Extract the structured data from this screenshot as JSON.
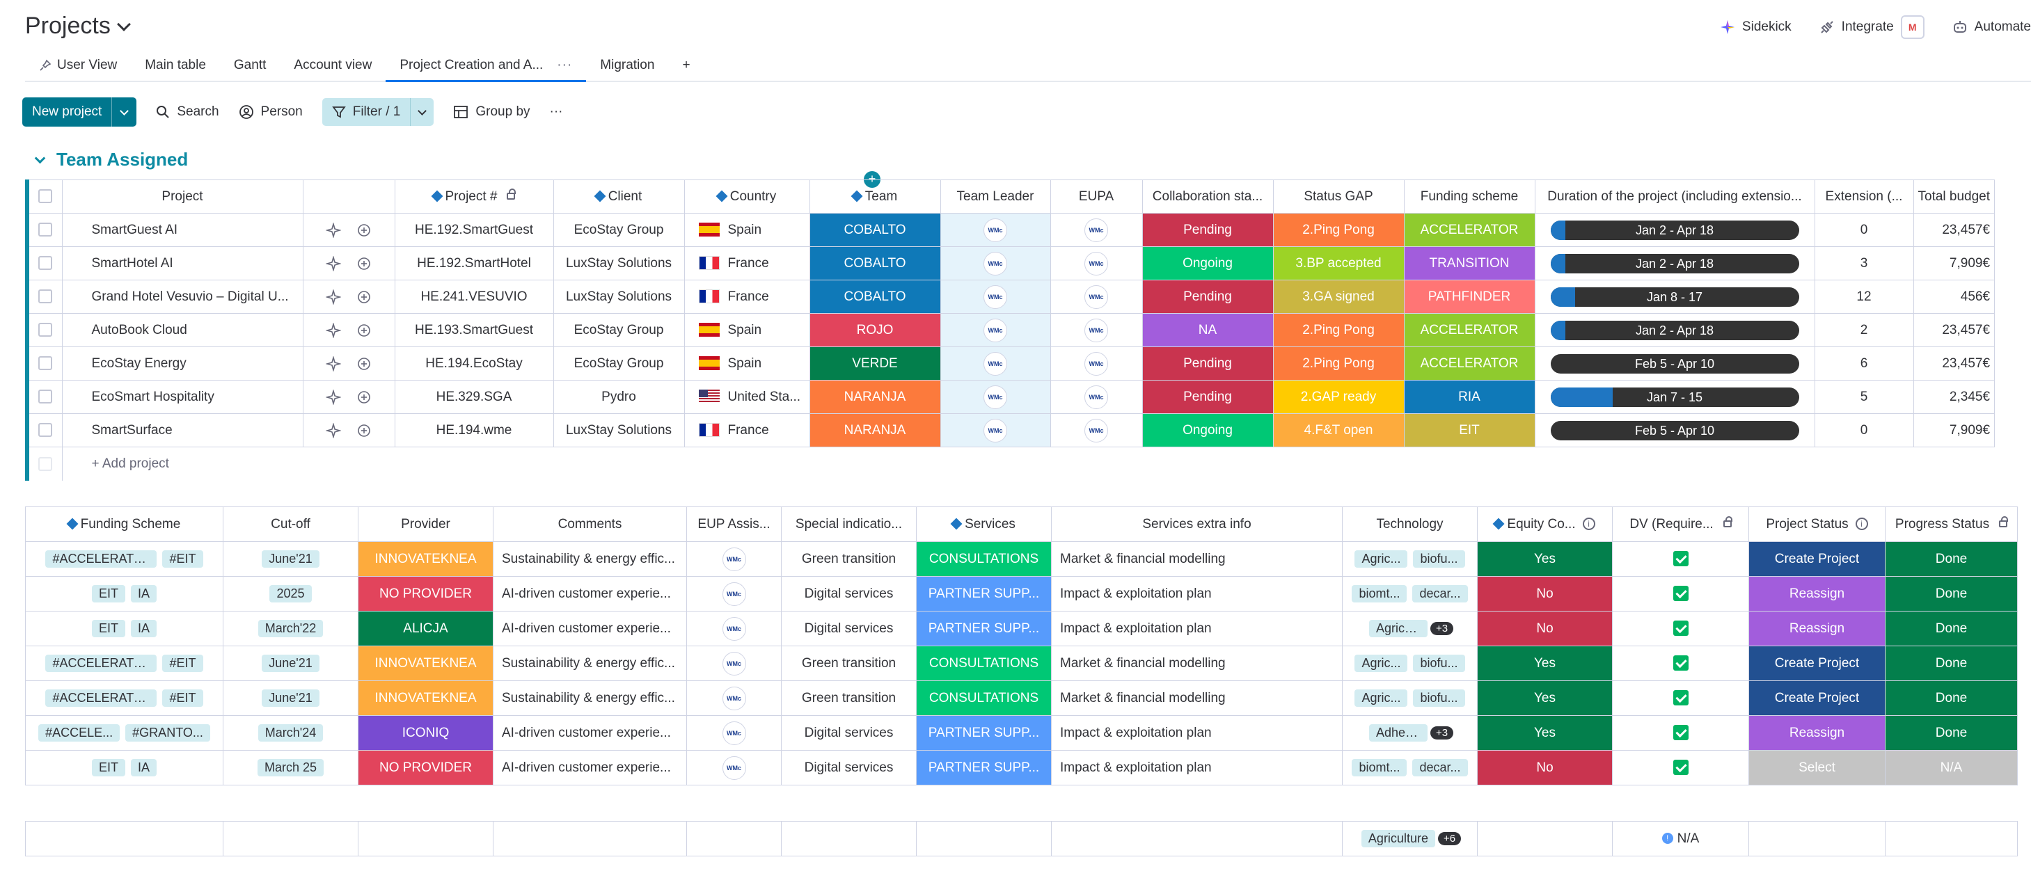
{
  "header": {
    "title": "Projects",
    "sidekick": "Sidekick",
    "integrate": "Integrate",
    "automate": "Automate"
  },
  "tabs": [
    {
      "label": "User View"
    },
    {
      "label": "Main table"
    },
    {
      "label": "Gantt"
    },
    {
      "label": "Account view"
    },
    {
      "label": "Project Creation and A..."
    },
    {
      "label": "Migration"
    },
    {
      "label": "+"
    }
  ],
  "toolbar": {
    "new_project": "New project",
    "search": "Search",
    "person": "Person",
    "filter": "Filter / 1",
    "group_by": "Group by",
    "more": "···"
  },
  "group": {
    "title": "Team Assigned",
    "add_project": "+ Add project"
  },
  "table1": {
    "headers": [
      "Project",
      "Project #",
      "Client",
      "Country",
      "Team",
      "Team Leader",
      "EUPA",
      "Collaboration sta...",
      "Status GAP",
      "Funding scheme",
      "Duration of the project (including extensio...",
      "Extension (...",
      "Total budget"
    ],
    "rows": [
      {
        "project": "SmartGuest AI",
        "num": "HE.192.SmartGuest",
        "client": "EcoStay Group",
        "country": "Spain",
        "flag": "es",
        "team": "COBALTO",
        "team_color": "#0f79b8",
        "leader": "WMc",
        "eupa": "WMc",
        "collab": "Pending",
        "collab_color": "#c9344f",
        "gap": "2.Ping Pong",
        "gap_color": "#fc7a3c",
        "funding": "ACCELERATOR",
        "funding_color": "#8fcb2e",
        "duration": "Jan 2 - Apr 18",
        "progress": 0.06,
        "extension": "0",
        "budget": "23,457€"
      },
      {
        "project": "SmartHotel AI",
        "num": "HE.192.SmartHotel",
        "client": "LuxStay Solutions",
        "country": "France",
        "flag": "fr",
        "team": "COBALTO",
        "team_color": "#0f79b8",
        "leader": "WMc",
        "eupa": "WMc",
        "collab": "Ongoing",
        "collab_color": "#00c875",
        "gap": "3.BP accepted",
        "gap_color": "#9cd326",
        "funding": "TRANSITION",
        "funding_color": "#a25ddc",
        "duration": "Jan 2 - Apr 18",
        "progress": 0.06,
        "extension": "3",
        "budget": "7,909€"
      },
      {
        "project": "Grand Hotel Vesuvio – Digital U...",
        "num": "HE.241.VESUVIO",
        "client": "LuxStay Solutions",
        "country": "France",
        "flag": "fr",
        "team": "COBALTO",
        "team_color": "#0f79b8",
        "leader": "WMc",
        "eupa": "WMc",
        "collab": "Pending",
        "collab_color": "#c9344f",
        "gap": "3.GA signed",
        "gap_color": "#cab641",
        "funding": "PATHFINDER",
        "funding_color": "#ff7575",
        "duration": "Jan 8 - 17",
        "progress": 0.1,
        "extension": "12",
        "budget": "456€"
      },
      {
        "project": "AutoBook Cloud",
        "num": "HE.193.SmartGuest",
        "client": "EcoStay Group",
        "country": "Spain",
        "flag": "es",
        "team": "ROJO",
        "team_color": "#e2445c",
        "leader": "WMc",
        "eupa": "WMc",
        "collab": "NA",
        "collab_color": "#a25ddc",
        "gap": "2.Ping Pong",
        "gap_color": "#fc7a3c",
        "funding": "ACCELERATOR",
        "funding_color": "#8fcb2e",
        "duration": "Jan 2 - Apr 18",
        "progress": 0.06,
        "extension": "2",
        "budget": "23,457€"
      },
      {
        "project": "EcoStay Energy",
        "num": "HE.194.EcoStay",
        "client": "EcoStay Group",
        "country": "Spain",
        "flag": "es",
        "team": "VERDE",
        "team_color": "#037f4c",
        "leader": "WMc",
        "eupa": "WMc",
        "collab": "Pending",
        "collab_color": "#c9344f",
        "gap": "2.Ping Pong",
        "gap_color": "#fc7a3c",
        "funding": "ACCELERATOR",
        "funding_color": "#8fcb2e",
        "duration": "Feb 5 - Apr 10",
        "progress": 0.0,
        "extension": "6",
        "budget": "23,457€"
      },
      {
        "project": "EcoSmart Hospitality",
        "num": "HE.329.SGA",
        "client": "Pydro",
        "country": "United Sta...",
        "flag": "us",
        "team": "NARANJA",
        "team_color": "#fc7a3c",
        "leader": "WMc",
        "eupa": "WMc",
        "collab": "Pending",
        "collab_color": "#c9344f",
        "gap": "2.GAP ready",
        "gap_color": "#ffcb00",
        "funding": "RIA",
        "funding_color": "#0f79b8",
        "duration": "Jan 7 - 15",
        "progress": 0.25,
        "extension": "5",
        "budget": "2,345€"
      },
      {
        "project": "SmartSurface",
        "num": "HE.194.wme",
        "client": "LuxStay Solutions",
        "country": "France",
        "flag": "fr",
        "team": "NARANJA",
        "team_color": "#fc7a3c",
        "leader": "WMc",
        "eupa": "WMc",
        "collab": "Ongoing",
        "collab_color": "#00c875",
        "gap": "4.F&T open",
        "gap_color": "#fdab3d",
        "funding": "EIT",
        "funding_color": "#cab641",
        "duration": "Feb 5 - Apr 10",
        "progress": 0.0,
        "extension": "0",
        "budget": "7,909€"
      }
    ]
  },
  "table2": {
    "headers": [
      "Funding Scheme",
      "Cut-off",
      "Provider",
      "Comments",
      "EUP Assis...",
      "Special indicatio...",
      "Services",
      "Services extra info",
      "Technology",
      "Equity Co...",
      "DV (Require...",
      "Project Status",
      "Progress Status"
    ],
    "rows": [
      {
        "scheme": [
          "#ACCELERATOR",
          "#EIT"
        ],
        "cutoff": "June'21",
        "provider": "INNOVATEKNEA",
        "provider_color": "#fdab3d",
        "comments": "Sustainability & energy effic...",
        "eup": "WMc",
        "special": "Green transition",
        "services": "CONSULTATIONS",
        "services_color": "#00c875",
        "extra": "Market & financial modelling",
        "tech": [
          "Agric...",
          "biofu..."
        ],
        "tech_more": "",
        "equity": "Yes",
        "equity_color": "#037f4c",
        "pstatus": "Create Project",
        "pstatus_color": "#225091",
        "progress": "Done",
        "progress_color": "#037f4c"
      },
      {
        "scheme": [
          "EIT",
          "IA"
        ],
        "cutoff": "2025",
        "provider": "NO PROVIDER",
        "provider_color": "#e2445c",
        "comments": "AI-driven customer experie...",
        "eup": "WMc",
        "special": "Digital services",
        "services": "PARTNER SUPP...",
        "services_color": "#579bfc",
        "extra": "Impact & exploitation plan",
        "tech": [
          "biomt...",
          "decar..."
        ],
        "tech_more": "",
        "equity": "No",
        "equity_color": "#c9344f",
        "pstatus": "Reassign",
        "pstatus_color": "#a25ddc",
        "progress": "Done",
        "progress_color": "#037f4c"
      },
      {
        "scheme": [
          "EIT",
          "IA"
        ],
        "cutoff": "March'22",
        "provider": "ALICJA",
        "provider_color": "#037f4c",
        "comments": "AI-driven customer experie...",
        "eup": "WMc",
        "special": "Digital services",
        "services": "PARTNER SUPP...",
        "services_color": "#579bfc",
        "extra": "Impact & exploitation plan",
        "tech": [
          "Agriculture"
        ],
        "tech_more": "+3",
        "equity": "No",
        "equity_color": "#c9344f",
        "pstatus": "Reassign",
        "pstatus_color": "#a25ddc",
        "progress": "Done",
        "progress_color": "#037f4c"
      },
      {
        "scheme": [
          "#ACCELERATOR",
          "#EIT"
        ],
        "cutoff": "June'21",
        "provider": "INNOVATEKNEA",
        "provider_color": "#fdab3d",
        "comments": "Sustainability & energy effic...",
        "eup": "WMc",
        "special": "Green transition",
        "services": "CONSULTATIONS",
        "services_color": "#00c875",
        "extra": "Market & financial modelling",
        "tech": [
          "Agric...",
          "biofu..."
        ],
        "tech_more": "",
        "equity": "Yes",
        "equity_color": "#037f4c",
        "pstatus": "Create Project",
        "pstatus_color": "#225091",
        "progress": "Done",
        "progress_color": "#037f4c"
      },
      {
        "scheme": [
          "#ACCELERATOR",
          "#EIT"
        ],
        "cutoff": "June'21",
        "provider": "INNOVATEKNEA",
        "provider_color": "#fdab3d",
        "comments": "Sustainability & energy effic...",
        "eup": "WMc",
        "special": "Green transition",
        "services": "CONSULTATIONS",
        "services_color": "#00c875",
        "extra": "Market & financial modelling",
        "tech": [
          "Agric...",
          "biofu..."
        ],
        "tech_more": "",
        "equity": "Yes",
        "equity_color": "#037f4c",
        "pstatus": "Create Project",
        "pstatus_color": "#225091",
        "progress": "Done",
        "progress_color": "#037f4c"
      },
      {
        "scheme": [
          "#ACCELE...",
          "#GRANTO..."
        ],
        "cutoff": "March'24",
        "provider": "ICONIQ",
        "provider_color": "#784bd1",
        "comments": "AI-driven customer experie...",
        "eup": "WMc",
        "special": "Digital services",
        "services": "PARTNER SUPP...",
        "services_color": "#579bfc",
        "extra": "Impact & exploitation plan",
        "tech": [
          "Adhesive ..."
        ],
        "tech_more": "+3",
        "equity": "Yes",
        "equity_color": "#037f4c",
        "pstatus": "Reassign",
        "pstatus_color": "#a25ddc",
        "progress": "Done",
        "progress_color": "#037f4c"
      },
      {
        "scheme": [
          "EIT",
          "IA"
        ],
        "cutoff": "March 25",
        "provider": "NO PROVIDER",
        "provider_color": "#e2445c",
        "comments": "AI-driven customer experie...",
        "eup": "WMc",
        "special": "Digital services",
        "services": "PARTNER SUPP...",
        "services_color": "#579bfc",
        "extra": "Impact & exploitation plan",
        "tech": [
          "biomt...",
          "decar..."
        ],
        "tech_more": "",
        "equity": "No",
        "equity_color": "#c9344f",
        "pstatus": "Select",
        "pstatus_color": "#c4c4c4",
        "progress": "N/A",
        "progress_color": "#c4c4c4"
      }
    ]
  },
  "summary": {
    "tech_tag": "Agriculture",
    "tech_more": "+6",
    "dv": "N/A"
  }
}
